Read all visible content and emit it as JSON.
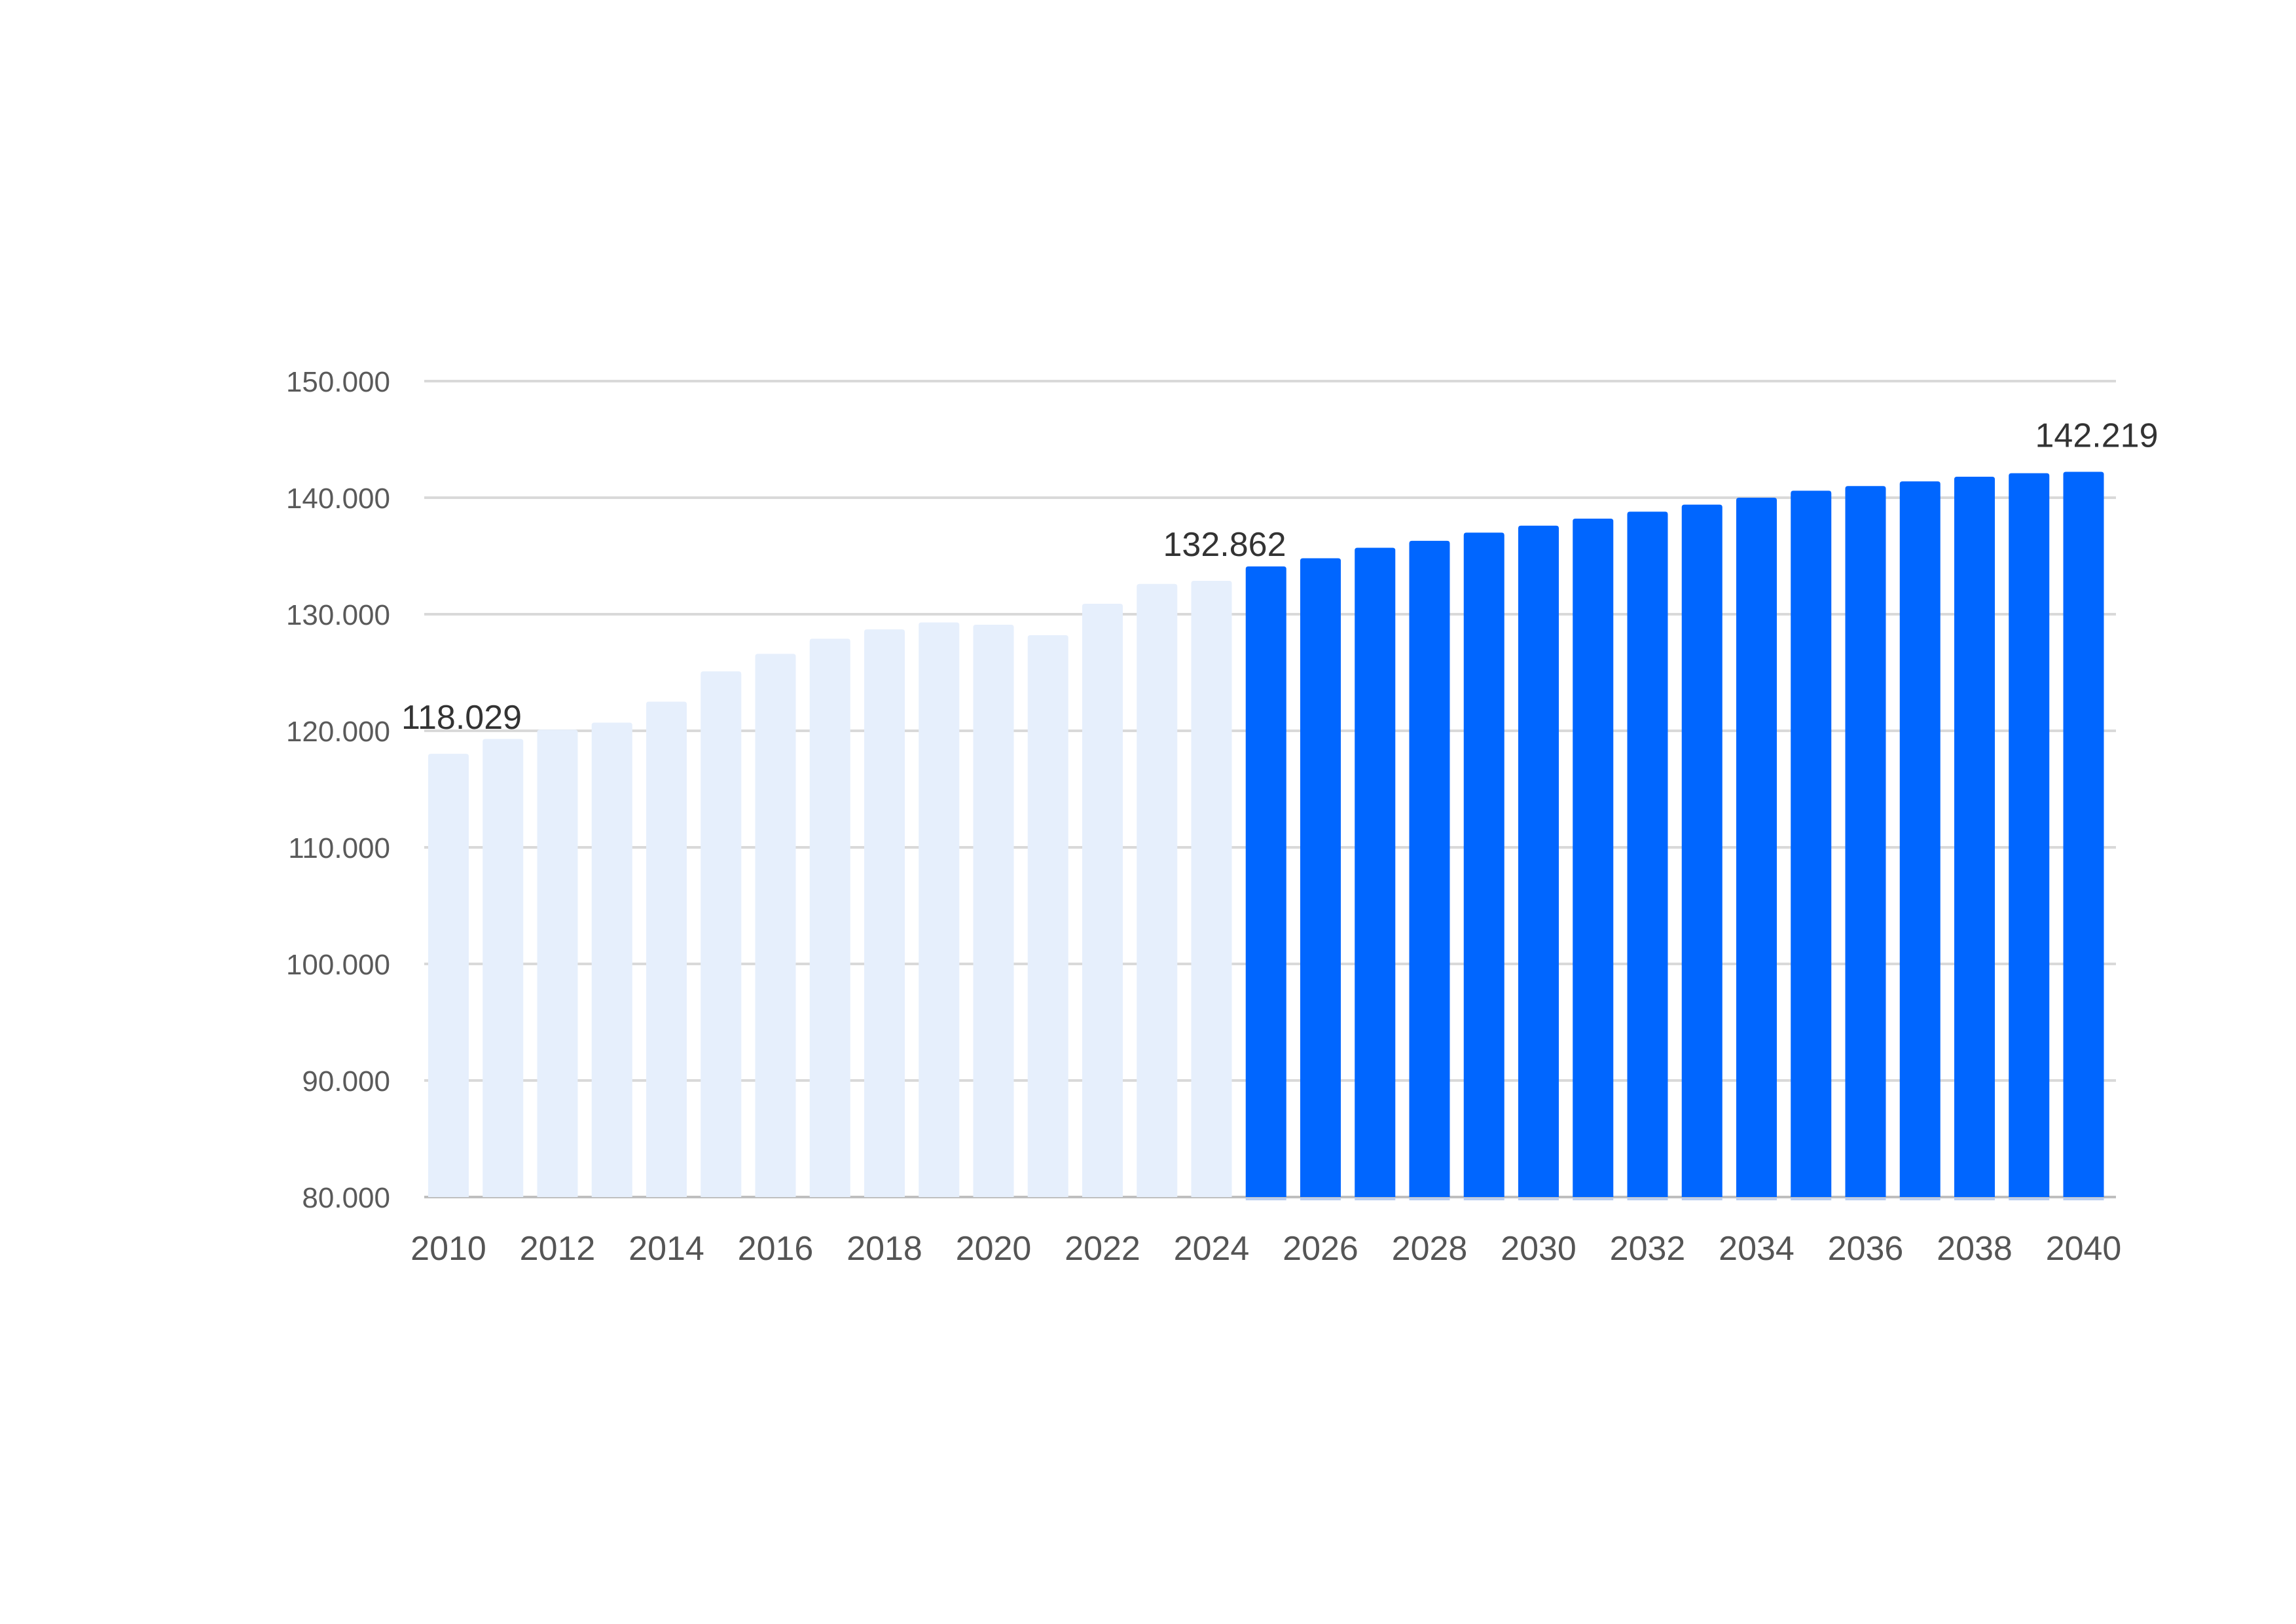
{
  "chart_data": {
    "type": "bar",
    "title": "",
    "xlabel": "",
    "ylabel": "",
    "categories": [
      "2010",
      "2011",
      "2012",
      "2013",
      "2014",
      "2015",
      "2016",
      "2017",
      "2018",
      "2019",
      "2020",
      "2021",
      "2022",
      "2023",
      "2024",
      "2025",
      "2026",
      "2027",
      "2028",
      "2029",
      "2030",
      "2031",
      "2032",
      "2033",
      "2034",
      "2035",
      "2036",
      "2037",
      "2038",
      "2039",
      "2040"
    ],
    "values": [
      118029,
      119300,
      120100,
      120700,
      122500,
      125100,
      126600,
      127900,
      128700,
      129300,
      129100,
      128200,
      130900,
      132600,
      132862,
      134100,
      134800,
      135700,
      136300,
      137000,
      137600,
      138200,
      138800,
      139400,
      140000,
      140600,
      141000,
      141400,
      141800,
      142100,
      142219
    ],
    "forecast_from_index": 15,
    "ylim": [
      80000,
      150000
    ],
    "yticks": [
      {
        "value": 80000,
        "label": "80.000"
      },
      {
        "value": 90000,
        "label": "90.000"
      },
      {
        "value": 100000,
        "label": "100.000"
      },
      {
        "value": 110000,
        "label": "110.000"
      },
      {
        "value": 120000,
        "label": "120.000"
      },
      {
        "value": 130000,
        "label": "130.000"
      },
      {
        "value": 140000,
        "label": "140.000"
      },
      {
        "value": 150000,
        "label": "150.000"
      }
    ],
    "xtick_labels": [
      "2010",
      "2012",
      "2014",
      "2016",
      "2018",
      "2020",
      "2022",
      "2024",
      "2026",
      "2028",
      "2030",
      "2032",
      "2034",
      "2036",
      "2038",
      "2040"
    ],
    "data_labels": [
      {
        "index": 0,
        "text": "118.029"
      },
      {
        "index": 14,
        "text": "132.862"
      },
      {
        "index": 30,
        "text": "142.219"
      }
    ],
    "grid": true,
    "legend": "none",
    "colors": {
      "historical": "#e6effc",
      "forecast": "#0066ff",
      "grid": "#d9d9d9"
    }
  }
}
